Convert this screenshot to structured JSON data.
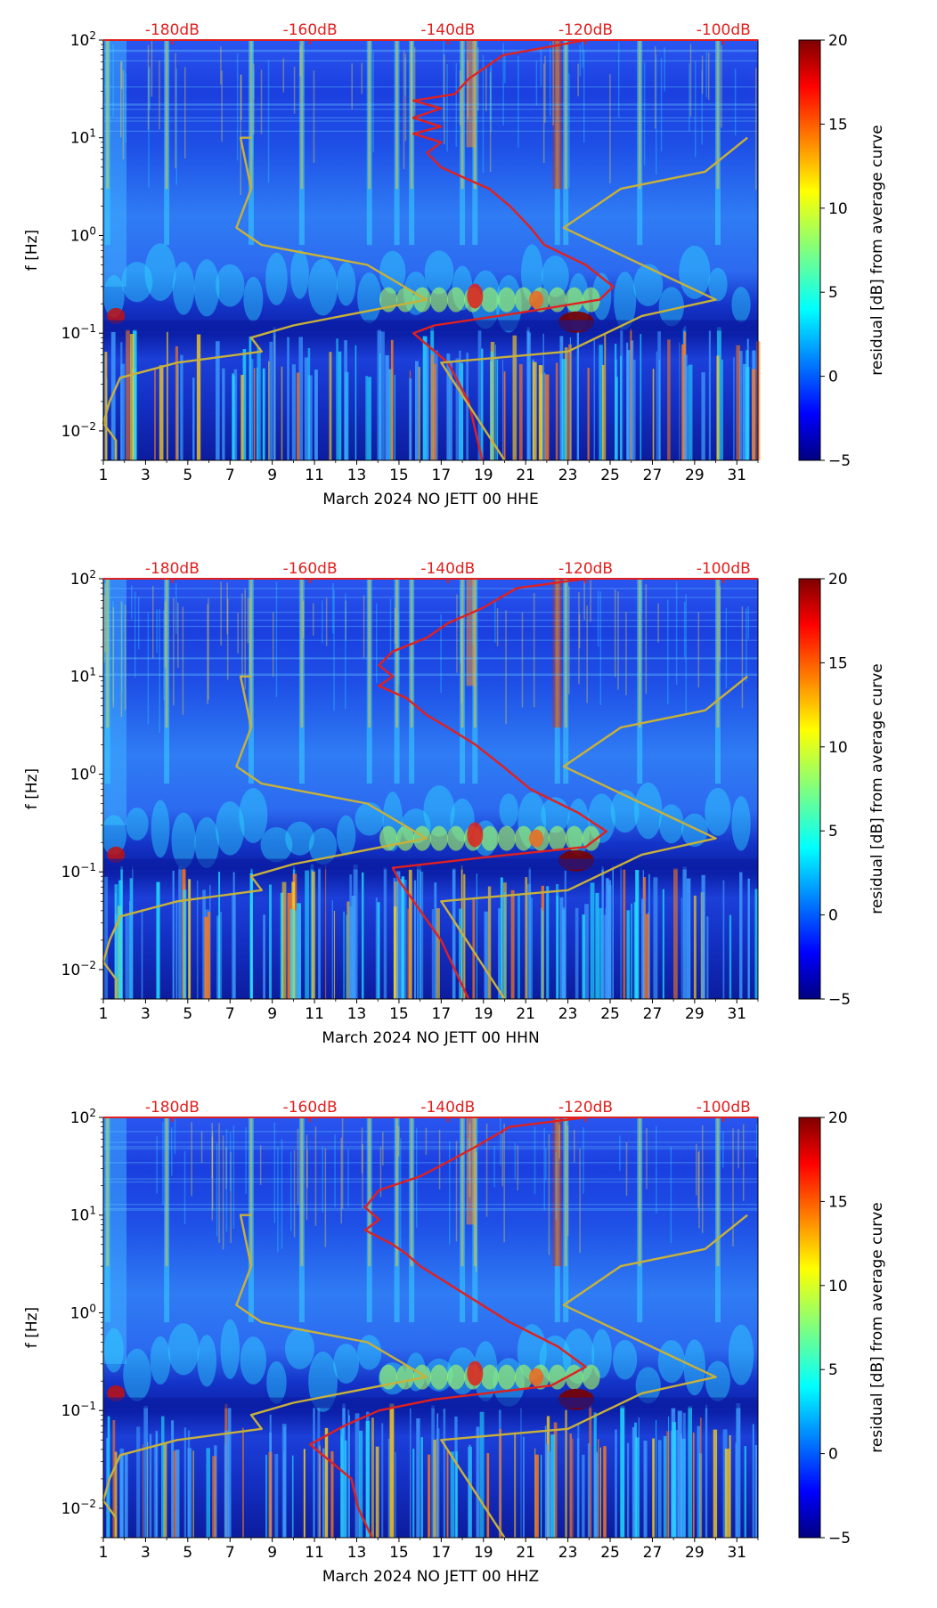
{
  "chart_data": [
    {
      "type": "heatmap",
      "title": "",
      "xlabel": "March 2024 NO JETT 00 HHE",
      "ylabel": "f [Hz]",
      "x_ticks": [
        "1",
        "3",
        "5",
        "7",
        "9",
        "11",
        "13",
        "15",
        "17",
        "19",
        "21",
        "23",
        "25",
        "27",
        "29",
        "31"
      ],
      "y_ticks": [
        "10^-2",
        "10^-1",
        "10^0",
        "10^1",
        "10^2"
      ],
      "xlim": [
        1,
        32
      ],
      "ylim_hz": [
        0.005,
        100
      ],
      "top_axis_labels": [
        "-180dB",
        "-160dB",
        "-140dB",
        "-120dB",
        "-100dB"
      ],
      "top_axis_values": [
        -180,
        -160,
        -140,
        -120,
        -100
      ],
      "colorbar": {
        "label": "residual [dB] from average curve",
        "min": -5,
        "max": 20,
        "ticks": [
          "−5",
          "0",
          "5",
          "10",
          "15",
          "20"
        ]
      },
      "curves": [
        {
          "name": "average PSD (red)",
          "color": "#e0201f",
          "points_db_hz": [
            [
              -120,
              100
            ],
            [
              -132,
              70
            ],
            [
              -137,
              40
            ],
            [
              -139,
              28
            ],
            [
              -145,
              24
            ],
            [
              -141,
              20
            ],
            [
              -145,
              16
            ],
            [
              -141,
              13
            ],
            [
              -145,
              11
            ],
            [
              -141,
              9
            ],
            [
              -143,
              7
            ],
            [
              -141,
              5
            ],
            [
              -138,
              4
            ],
            [
              -134,
              3
            ],
            [
              -131,
              2
            ],
            [
              -128,
              1.2
            ],
            [
              -126,
              0.8
            ],
            [
              -120,
              0.5
            ],
            [
              -116,
              0.3
            ],
            [
              -118,
              0.22
            ],
            [
              -130,
              0.16
            ],
            [
              -142,
              0.12
            ],
            [
              -145,
              0.1
            ],
            [
              -140,
              0.05
            ],
            [
              -137,
              0.02
            ],
            [
              -136,
              0.01
            ],
            [
              -135,
              0.005
            ]
          ]
        },
        {
          "name": "noise model (gold)",
          "color": "#c8b13a",
          "points_x_hz": [
            [
              1.6,
              0.005
            ],
            [
              1.6,
              0.008
            ],
            [
              1.0,
              0.012
            ],
            [
              1.3,
              0.02
            ],
            [
              1.8,
              0.035
            ],
            [
              4.5,
              0.05
            ],
            [
              8.5,
              0.065
            ],
            [
              8.0,
              0.09
            ],
            [
              10,
              0.12
            ],
            [
              16.3,
              0.22
            ],
            [
              13.5,
              0.5
            ],
            [
              8.5,
              0.8
            ],
            [
              7.3,
              1.2
            ],
            [
              8.0,
              3.0
            ],
            [
              7.5,
              10
            ],
            [
              8.0,
              10
            ]
          ]
        },
        {
          "name": "noise model right (gold)",
          "color": "#c8b13a",
          "points_x_hz": [
            [
              20.0,
              0.005
            ],
            [
              17.0,
              0.05
            ],
            [
              23.0,
              0.065
            ],
            [
              26.5,
              0.15
            ],
            [
              30.0,
              0.22
            ],
            [
              22.8,
              1.2
            ],
            [
              25.5,
              3.0
            ],
            [
              29.5,
              4.5
            ],
            [
              31.5,
              10
            ]
          ]
        }
      ]
    },
    {
      "type": "heatmap",
      "title": "",
      "xlabel": "March 2024 NO JETT 00 HHN",
      "ylabel": "f [Hz]",
      "x_ticks": [
        "1",
        "3",
        "5",
        "7",
        "9",
        "11",
        "13",
        "15",
        "17",
        "19",
        "21",
        "23",
        "25",
        "27",
        "29",
        "31"
      ],
      "y_ticks": [
        "10^-2",
        "10^-1",
        "10^0",
        "10^1",
        "10^2"
      ],
      "xlim": [
        1,
        32
      ],
      "ylim_hz": [
        0.005,
        100
      ],
      "top_axis_labels": [
        "-180dB",
        "-160dB",
        "-140dB",
        "-120dB",
        "-100dB"
      ],
      "top_axis_values": [
        -180,
        -160,
        -140,
        -120,
        -100
      ],
      "colorbar": {
        "label": "residual [dB] from average curve",
        "min": -5,
        "max": 20,
        "ticks": [
          "−5",
          "0",
          "5",
          "10",
          "15",
          "20"
        ]
      },
      "curves": [
        {
          "name": "average PSD (red)",
          "color": "#e0201f",
          "points_db_hz": [
            [
              -120,
              100
            ],
            [
              -130,
              80
            ],
            [
              -135,
              50
            ],
            [
              -140,
              35
            ],
            [
              -143,
              25
            ],
            [
              -148,
              18
            ],
            [
              -150,
              13
            ],
            [
              -148,
              10
            ],
            [
              -150,
              8
            ],
            [
              -146,
              6
            ],
            [
              -143,
              4
            ],
            [
              -140,
              3
            ],
            [
              -136,
              2
            ],
            [
              -132,
              1.2
            ],
            [
              -128,
              0.7
            ],
            [
              -121,
              0.4
            ],
            [
              -117,
              0.26
            ],
            [
              -120,
              0.18
            ],
            [
              -135,
              0.14
            ],
            [
              -148,
              0.11
            ],
            [
              -147,
              0.08
            ],
            [
              -144,
              0.04
            ],
            [
              -141,
              0.02
            ],
            [
              -139,
              0.01
            ],
            [
              -137,
              0.005
            ]
          ]
        },
        {
          "name": "noise model (gold)",
          "color": "#c8b13a",
          "points_x_hz": [
            [
              1.6,
              0.005
            ],
            [
              1.6,
              0.008
            ],
            [
              1.0,
              0.012
            ],
            [
              1.3,
              0.02
            ],
            [
              1.8,
              0.035
            ],
            [
              4.5,
              0.05
            ],
            [
              8.5,
              0.065
            ],
            [
              8.0,
              0.09
            ],
            [
              10,
              0.12
            ],
            [
              16.3,
              0.22
            ],
            [
              13.5,
              0.5
            ],
            [
              8.5,
              0.8
            ],
            [
              7.3,
              1.2
            ],
            [
              8.0,
              3.0
            ],
            [
              7.5,
              10
            ],
            [
              8.0,
              10
            ]
          ]
        },
        {
          "name": "noise model right (gold)",
          "color": "#c8b13a",
          "points_x_hz": [
            [
              20.0,
              0.005
            ],
            [
              17.0,
              0.05
            ],
            [
              23.0,
              0.065
            ],
            [
              26.5,
              0.15
            ],
            [
              30.0,
              0.22
            ],
            [
              22.8,
              1.2
            ],
            [
              25.5,
              3.0
            ],
            [
              29.5,
              4.5
            ],
            [
              31.5,
              10
            ]
          ]
        }
      ]
    },
    {
      "type": "heatmap",
      "title": "",
      "xlabel": "March 2024 NO JETT 00 HHZ",
      "ylabel": "f [Hz]",
      "x_ticks": [
        "1",
        "3",
        "5",
        "7",
        "9",
        "11",
        "13",
        "15",
        "17",
        "19",
        "21",
        "23",
        "25",
        "27",
        "29",
        "31"
      ],
      "y_ticks": [
        "10^-2",
        "10^-1",
        "10^0",
        "10^1",
        "10^2"
      ],
      "xlim": [
        1,
        32
      ],
      "ylim_hz": [
        0.005,
        100
      ],
      "top_axis_labels": [
        "-180dB",
        "-160dB",
        "-140dB",
        "-120dB",
        "-100dB"
      ],
      "top_axis_values": [
        -180,
        -160,
        -140,
        -120,
        -100
      ],
      "colorbar": {
        "label": "residual [dB] from average curve",
        "min": -5,
        "max": 20,
        "ticks": [
          "−5",
          "0",
          "5",
          "10",
          "15",
          "20"
        ]
      },
      "curves": [
        {
          "name": "average PSD (red)",
          "color": "#e0201f",
          "points_db_hz": [
            [
              -120,
              100
            ],
            [
              -131,
              80
            ],
            [
              -136,
              50
            ],
            [
              -140,
              35
            ],
            [
              -144,
              25
            ],
            [
              -150,
              18
            ],
            [
              -152,
              12
            ],
            [
              -150,
              9
            ],
            [
              -152,
              7
            ],
            [
              -148,
              5
            ],
            [
              -146,
              4
            ],
            [
              -144,
              3
            ],
            [
              -140,
              2
            ],
            [
              -135,
              1.2
            ],
            [
              -131,
              0.8
            ],
            [
              -124,
              0.45
            ],
            [
              -120,
              0.28
            ],
            [
              -125,
              0.18
            ],
            [
              -142,
              0.13
            ],
            [
              -150,
              0.1
            ],
            [
              -155,
              0.07
            ],
            [
              -160,
              0.045
            ],
            [
              -157,
              0.03
            ],
            [
              -154,
              0.02
            ],
            [
              -153,
              0.01
            ],
            [
              -151,
              0.005
            ]
          ]
        },
        {
          "name": "noise model (gold)",
          "color": "#c8b13a",
          "points_x_hz": [
            [
              1.6,
              0.005
            ],
            [
              1.6,
              0.008
            ],
            [
              1.0,
              0.012
            ],
            [
              1.3,
              0.02
            ],
            [
              1.8,
              0.035
            ],
            [
              4.5,
              0.05
            ],
            [
              8.5,
              0.065
            ],
            [
              8.0,
              0.09
            ],
            [
              10,
              0.12
            ],
            [
              16.3,
              0.22
            ],
            [
              13.5,
              0.5
            ],
            [
              8.5,
              0.8
            ],
            [
              7.3,
              1.2
            ],
            [
              8.0,
              3.0
            ],
            [
              7.5,
              10
            ],
            [
              8.0,
              10
            ]
          ]
        },
        {
          "name": "noise model right (gold)",
          "color": "#c8b13a",
          "points_x_hz": [
            [
              20.0,
              0.005
            ],
            [
              17.0,
              0.05
            ],
            [
              23.0,
              0.065
            ],
            [
              26.5,
              0.15
            ],
            [
              30.0,
              0.22
            ],
            [
              22.8,
              1.2
            ],
            [
              25.5,
              3.0
            ],
            [
              29.5,
              4.5
            ],
            [
              31.5,
              10
            ]
          ]
        }
      ]
    }
  ]
}
